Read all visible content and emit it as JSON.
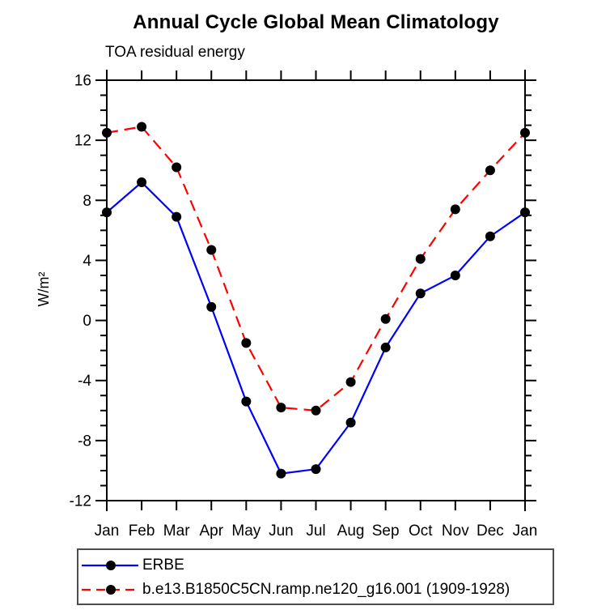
{
  "header": {
    "title": "Annual Cycle Global Mean Climatology",
    "subtitle": "TOA residual energy"
  },
  "chart_data": {
    "type": "line",
    "title": "Annual Cycle Global Mean Climatology",
    "subtitle": "TOA residual energy",
    "xlabel": "",
    "ylabel": "W/m²",
    "x_categories": [
      "Jan",
      "Feb",
      "Mar",
      "Apr",
      "May",
      "Jun",
      "Jul",
      "Aug",
      "Sep",
      "Oct",
      "Nov",
      "Dec",
      "Jan"
    ],
    "ylim": [
      -12,
      16
    ],
    "yticks_major": [
      16,
      12,
      8,
      4,
      0,
      -4,
      -8,
      -12
    ],
    "ytick_minor_step": 1,
    "grid": false,
    "legend_position": "bottom-left",
    "series": [
      {
        "name": "ERBE",
        "color": "#0000ff",
        "style": "solid",
        "marker": "circle",
        "marker_color": "#000000",
        "values": [
          7.2,
          9.2,
          6.9,
          0.9,
          -5.4,
          -10.2,
          -9.9,
          -6.8,
          -1.8,
          1.8,
          3.0,
          5.6,
          7.2
        ]
      },
      {
        "name": "b.e13.B1850C5CN.ramp.ne120_g16.001 (1909-1928)",
        "color": "#ff0000",
        "style": "dashed",
        "marker": "circle",
        "marker_color": "#000000",
        "values": [
          12.5,
          12.9,
          10.2,
          4.7,
          -1.5,
          -5.8,
          -6.0,
          -4.1,
          0.1,
          4.1,
          7.4,
          10.0,
          12.5
        ]
      }
    ]
  }
}
